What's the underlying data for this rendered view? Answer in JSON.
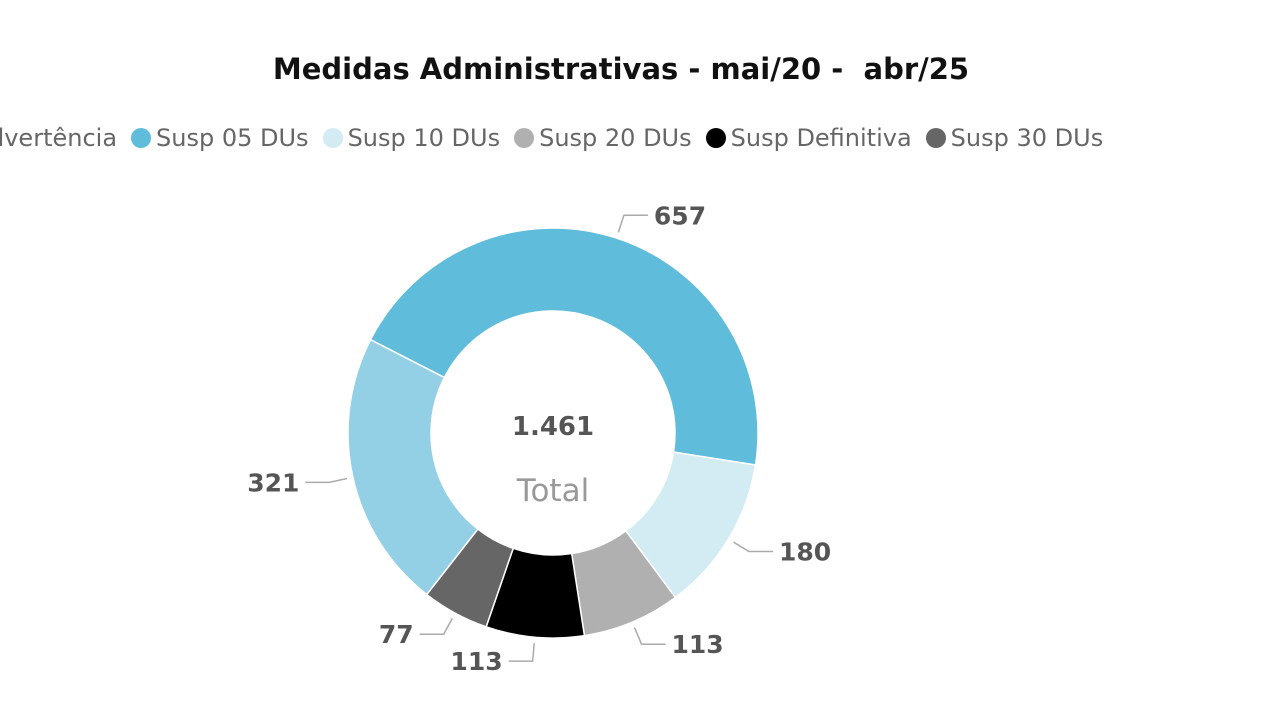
{
  "chart_data": {
    "type": "pie",
    "variant": "donut",
    "title": "Medidas Administrativas - mai/20 -  abr/25",
    "categories": [
      "Advertência",
      "Susp 05 DUs",
      "Susp 10 DUs",
      "Susp 20 DUs",
      "Susp Definitiva",
      "Susp 30 DUs"
    ],
    "values": [
      321,
      657,
      180,
      113,
      113,
      77
    ],
    "value_labels": [
      "321",
      "657",
      "180",
      "113",
      "113",
      "77"
    ],
    "colors": [
      "#93CFE5",
      "#5FBCDA",
      "#D3ECF3",
      "#B0B0B0",
      "#000000",
      "#666666"
    ],
    "legend_position": "top",
    "center": {
      "value": "1.461",
      "label": "Total"
    }
  }
}
